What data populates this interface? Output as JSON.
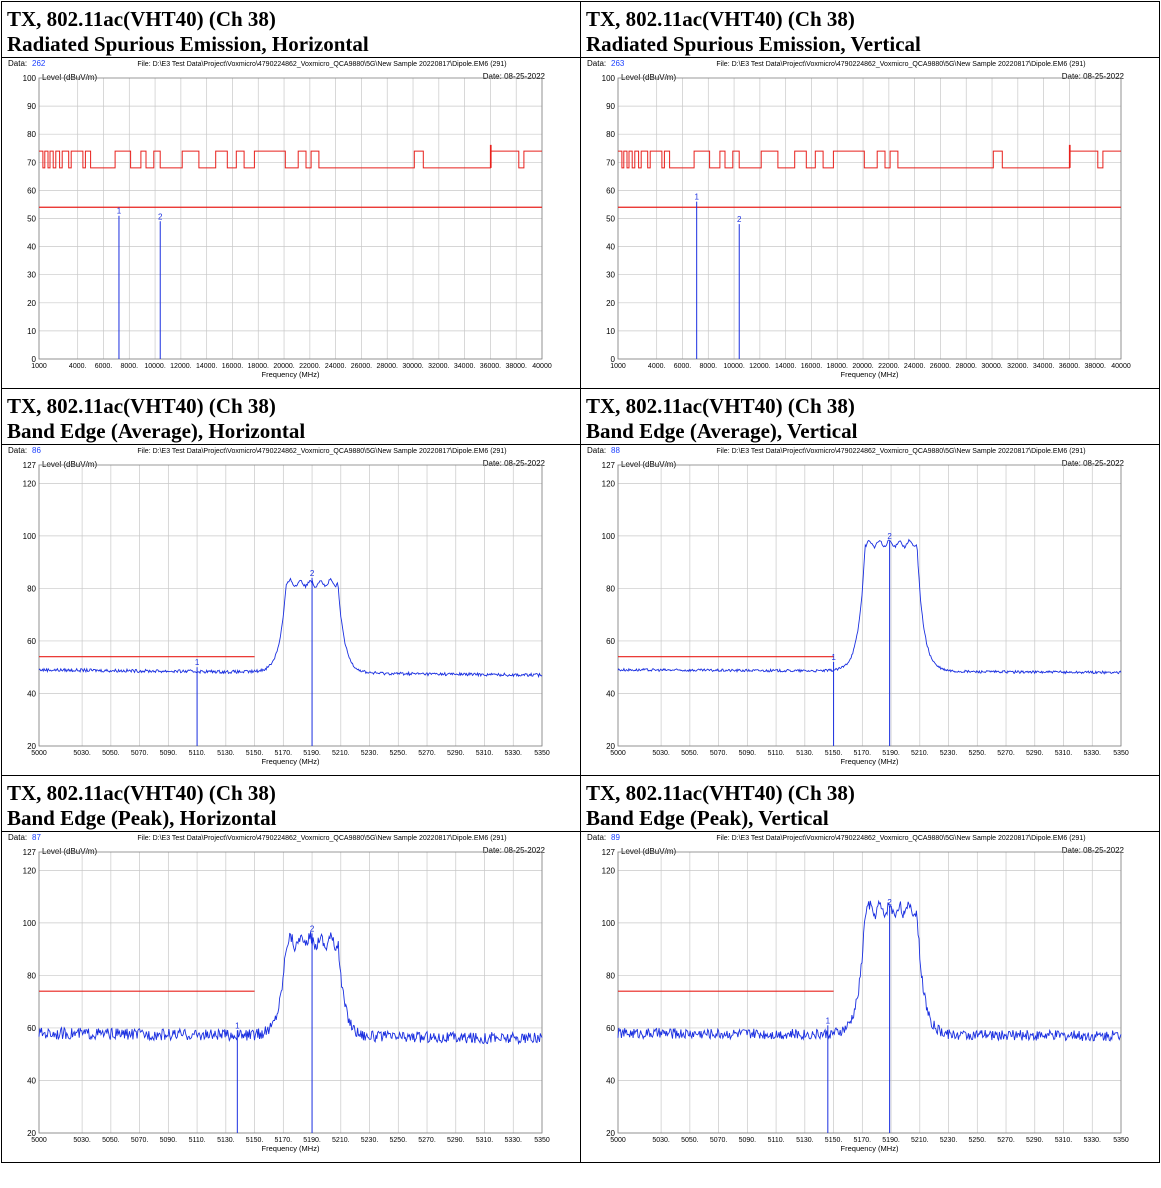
{
  "file_label": "File: D:\\E3 Test Data\\Project\\Voxmicro\\4790224862_Voxmicro_QCA9880\\5G\\New Sample 20220817\\Dipole.EM6  (291)",
  "date_label": "Date: 08-25-2022",
  "ylabel": "Level (dBuV/m)",
  "xlabel": "Frequency (MHz)",
  "panels": [
    {
      "title1": "TX, 802.11ac(VHT40) (Ch 38)",
      "title2": "Radiated Spurious Emission, Horizontal",
      "data_no": "262"
    },
    {
      "title1": "TX, 802.11ac(VHT40) (Ch 38)",
      "title2": "Radiated Spurious Emission, Vertical",
      "data_no": "263"
    },
    {
      "title1": "TX, 802.11ac(VHT40) (Ch 38)",
      "title2": "Band Edge (Average), Horizontal",
      "data_no": "86"
    },
    {
      "title1": "TX, 802.11ac(VHT40) (Ch 38)",
      "title2": "Band Edge (Average), Vertical",
      "data_no": "88"
    },
    {
      "title1": "TX, 802.11ac(VHT40) (Ch 38)",
      "title2": "Band Edge (Peak), Horizontal",
      "data_no": "87"
    },
    {
      "title1": "TX, 802.11ac(VHT40) (Ch 38)",
      "title2": "Band Edge (Peak), Vertical",
      "data_no": "89"
    }
  ],
  "chart_data": [
    {
      "type": "line",
      "ylim": [
        0,
        100
      ],
      "xlim": [
        1000,
        40000
      ],
      "xticks": [
        "1000",
        "4000.",
        "6000.",
        "8000.",
        "10000.",
        "12000.",
        "14000.",
        "16000.",
        "18000.",
        "20000.",
        "22000.",
        "24000.",
        "26000.",
        "28000.",
        "30000.",
        "32000.",
        "34000.",
        "36000.",
        "38000.",
        "40000"
      ],
      "xtick_values": [
        1000,
        4000,
        6000,
        8000,
        10000,
        12000,
        14000,
        16000,
        18000,
        20000,
        22000,
        24000,
        26000,
        28000,
        30000,
        32000,
        34000,
        36000,
        38000,
        40000
      ],
      "yticks": [
        0,
        10,
        20,
        30,
        40,
        50,
        60,
        70,
        80,
        90,
        100
      ],
      "grid": true,
      "limit_line": {
        "y": 54,
        "x_range": [
          1000,
          40000
        ],
        "color": "#e8201c"
      },
      "upper_limit_shape": "stepped 68-74 dBuV/m",
      "markers": [
        {
          "label": "1",
          "x": 7200,
          "y": 51
        },
        {
          "label": "2",
          "x": 10400,
          "y": 49
        }
      ]
    },
    {
      "type": "line",
      "ylim": [
        0,
        100
      ],
      "xlim": [
        1000,
        40000
      ],
      "xticks": [
        "1000",
        "4000.",
        "6000.",
        "8000.",
        "10000.",
        "12000.",
        "14000.",
        "16000.",
        "18000.",
        "20000.",
        "22000.",
        "24000.",
        "26000.",
        "28000.",
        "30000.",
        "32000.",
        "34000.",
        "36000.",
        "38000.",
        "40000"
      ],
      "xtick_values": [
        1000,
        4000,
        6000,
        8000,
        10000,
        12000,
        14000,
        16000,
        18000,
        20000,
        22000,
        24000,
        26000,
        28000,
        30000,
        32000,
        34000,
        36000,
        38000,
        40000
      ],
      "yticks": [
        0,
        10,
        20,
        30,
        40,
        50,
        60,
        70,
        80,
        90,
        100
      ],
      "grid": true,
      "limit_line": {
        "y": 54,
        "x_range": [
          1000,
          40000
        ],
        "color": "#e8201c"
      },
      "upper_limit_shape": "stepped 68-74 dBuV/m",
      "markers": [
        {
          "label": "1",
          "x": 7100,
          "y": 56
        },
        {
          "label": "2",
          "x": 10400,
          "y": 48
        }
      ]
    },
    {
      "type": "line",
      "ylim": [
        20,
        127
      ],
      "xlim": [
        5000,
        5350
      ],
      "xticks": [
        "5000",
        "5030.",
        "5050.",
        "5070.",
        "5090.",
        "5110.",
        "5130.",
        "5150.",
        "5170.",
        "5190.",
        "5210.",
        "5230.",
        "5250.",
        "5270.",
        "5290.",
        "5310.",
        "5330.",
        "5350"
      ],
      "xtick_values": [
        5000,
        5030,
        5050,
        5070,
        5090,
        5110,
        5130,
        5150,
        5170,
        5190,
        5210,
        5230,
        5250,
        5270,
        5290,
        5310,
        5330,
        5350
      ],
      "yticks": [
        20,
        40,
        60,
        80,
        100,
        120,
        127
      ],
      "grid": true,
      "limit_line": {
        "y": 54,
        "x_range": [
          5000,
          5150
        ],
        "color": "#e8201c"
      },
      "trace": {
        "baseline_left": 49,
        "baseline_right": 47,
        "plateau": 82,
        "band": [
          5172,
          5208
        ],
        "noise": 0.6
      },
      "markers": [
        {
          "label": "1",
          "x": 5110,
          "y": 50
        },
        {
          "label": "2",
          "x": 5190,
          "y": 84
        }
      ]
    },
    {
      "type": "line",
      "ylim": [
        20,
        127
      ],
      "xlim": [
        5000,
        5350
      ],
      "xticks": [
        "5000",
        "5030.",
        "5050.",
        "5070.",
        "5090.",
        "5110.",
        "5130.",
        "5150.",
        "5170.",
        "5190.",
        "5210.",
        "5230.",
        "5250.",
        "5270.",
        "5290.",
        "5310.",
        "5330.",
        "5350"
      ],
      "xtick_values": [
        5000,
        5030,
        5050,
        5070,
        5090,
        5110,
        5130,
        5150,
        5170,
        5190,
        5210,
        5230,
        5250,
        5270,
        5290,
        5310,
        5330,
        5350
      ],
      "yticks": [
        20,
        40,
        60,
        80,
        100,
        120,
        127
      ],
      "grid": true,
      "limit_line": {
        "y": 54,
        "x_range": [
          5000,
          5150
        ],
        "color": "#e8201c"
      },
      "trace": {
        "baseline_left": 49,
        "baseline_right": 48,
        "plateau": 97,
        "band": [
          5172,
          5208
        ],
        "noise": 0.5
      },
      "markers": [
        {
          "label": "1",
          "x": 5150,
          "y": 52
        },
        {
          "label": "2",
          "x": 5189,
          "y": 98
        }
      ]
    },
    {
      "type": "line",
      "ylim": [
        20,
        127
      ],
      "xlim": [
        5000,
        5350
      ],
      "xticks": [
        "5000",
        "5030.",
        "5050.",
        "5070.",
        "5090.",
        "5110.",
        "5130.",
        "5150.",
        "5170.",
        "5190.",
        "5210.",
        "5230.",
        "5250.",
        "5270.",
        "5290.",
        "5310.",
        "5330.",
        "5350"
      ],
      "xtick_values": [
        5000,
        5030,
        5050,
        5070,
        5090,
        5110,
        5130,
        5150,
        5170,
        5190,
        5210,
        5230,
        5250,
        5270,
        5290,
        5310,
        5330,
        5350
      ],
      "yticks": [
        20,
        40,
        60,
        80,
        100,
        120,
        127
      ],
      "grid": true,
      "limit_line": {
        "y": 74,
        "x_range": [
          5000,
          5150
        ],
        "color": "#e8201c"
      },
      "trace": {
        "baseline_left": 58,
        "baseline_right": 56,
        "plateau": 93,
        "band": [
          5172,
          5208
        ],
        "noise": 2.2
      },
      "markers": [
        {
          "label": "1",
          "x": 5138,
          "y": 59
        },
        {
          "label": "2",
          "x": 5190,
          "y": 96
        }
      ]
    },
    {
      "type": "line",
      "ylim": [
        20,
        127
      ],
      "xlim": [
        5000,
        5350
      ],
      "xticks": [
        "5000",
        "5030.",
        "5050.",
        "5070.",
        "5090.",
        "5110.",
        "5130.",
        "5150.",
        "5170.",
        "5190.",
        "5210.",
        "5230.",
        "5250.",
        "5270.",
        "5290.",
        "5310.",
        "5330.",
        "5350"
      ],
      "xtick_values": [
        5000,
        5030,
        5050,
        5070,
        5090,
        5110,
        5130,
        5150,
        5170,
        5190,
        5210,
        5230,
        5250,
        5270,
        5290,
        5310,
        5330,
        5350
      ],
      "yticks": [
        20,
        40,
        60,
        80,
        100,
        120,
        127
      ],
      "grid": true,
      "limit_line": {
        "y": 74,
        "x_range": [
          5000,
          5150
        ],
        "color": "#e8201c"
      },
      "trace": {
        "baseline_left": 58,
        "baseline_right": 57,
        "plateau": 105,
        "band": [
          5172,
          5208
        ],
        "noise": 2.0
      },
      "markers": [
        {
          "label": "1",
          "x": 5146,
          "y": 61
        },
        {
          "label": "2",
          "x": 5189,
          "y": 106
        }
      ]
    }
  ]
}
